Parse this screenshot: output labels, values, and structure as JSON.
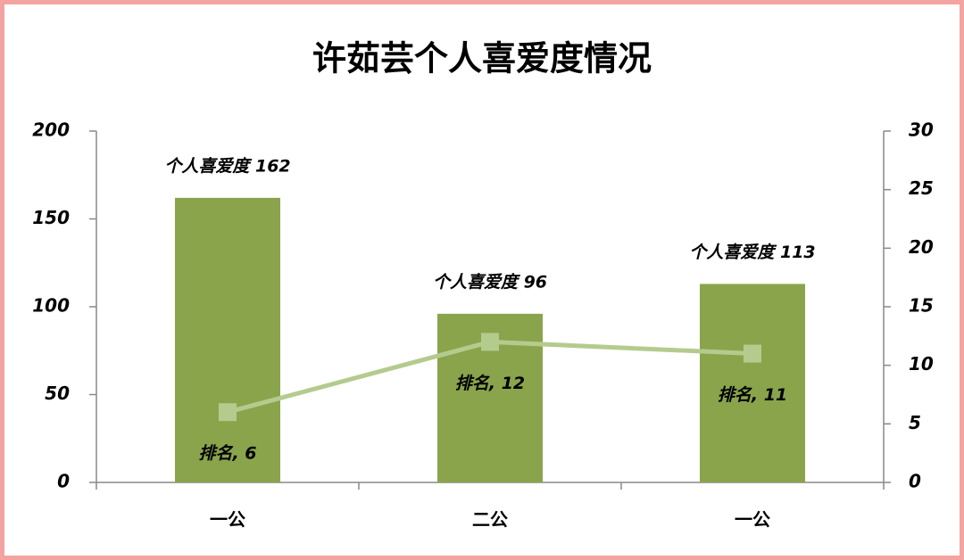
{
  "chart_data": {
    "type": "bar-line",
    "title": "许茹芸个人喜爱度情况",
    "categories": [
      "一公",
      "二公",
      "一公"
    ],
    "series": [
      {
        "type": "bar",
        "color": "#8aa44b",
        "values": [
          162,
          96,
          113
        ],
        "value_labels": [
          "个人喜爱度 162",
          "个人喜爱度 96",
          "个人喜爱度 113"
        ]
      },
      {
        "type": "line",
        "axis": "y2",
        "color": "#b4cb8e",
        "values": [
          6,
          12,
          11
        ],
        "value_labels": [
          "排名, 6",
          "排名, 12",
          "排名, 11"
        ]
      }
    ],
    "ylim": [
      0,
      200
    ],
    "yticks": [
      0,
      50,
      100,
      150,
      200
    ],
    "y2lim": [
      0,
      30
    ],
    "y2ticks": [
      0,
      5,
      10,
      15,
      20,
      25,
      30
    ]
  }
}
